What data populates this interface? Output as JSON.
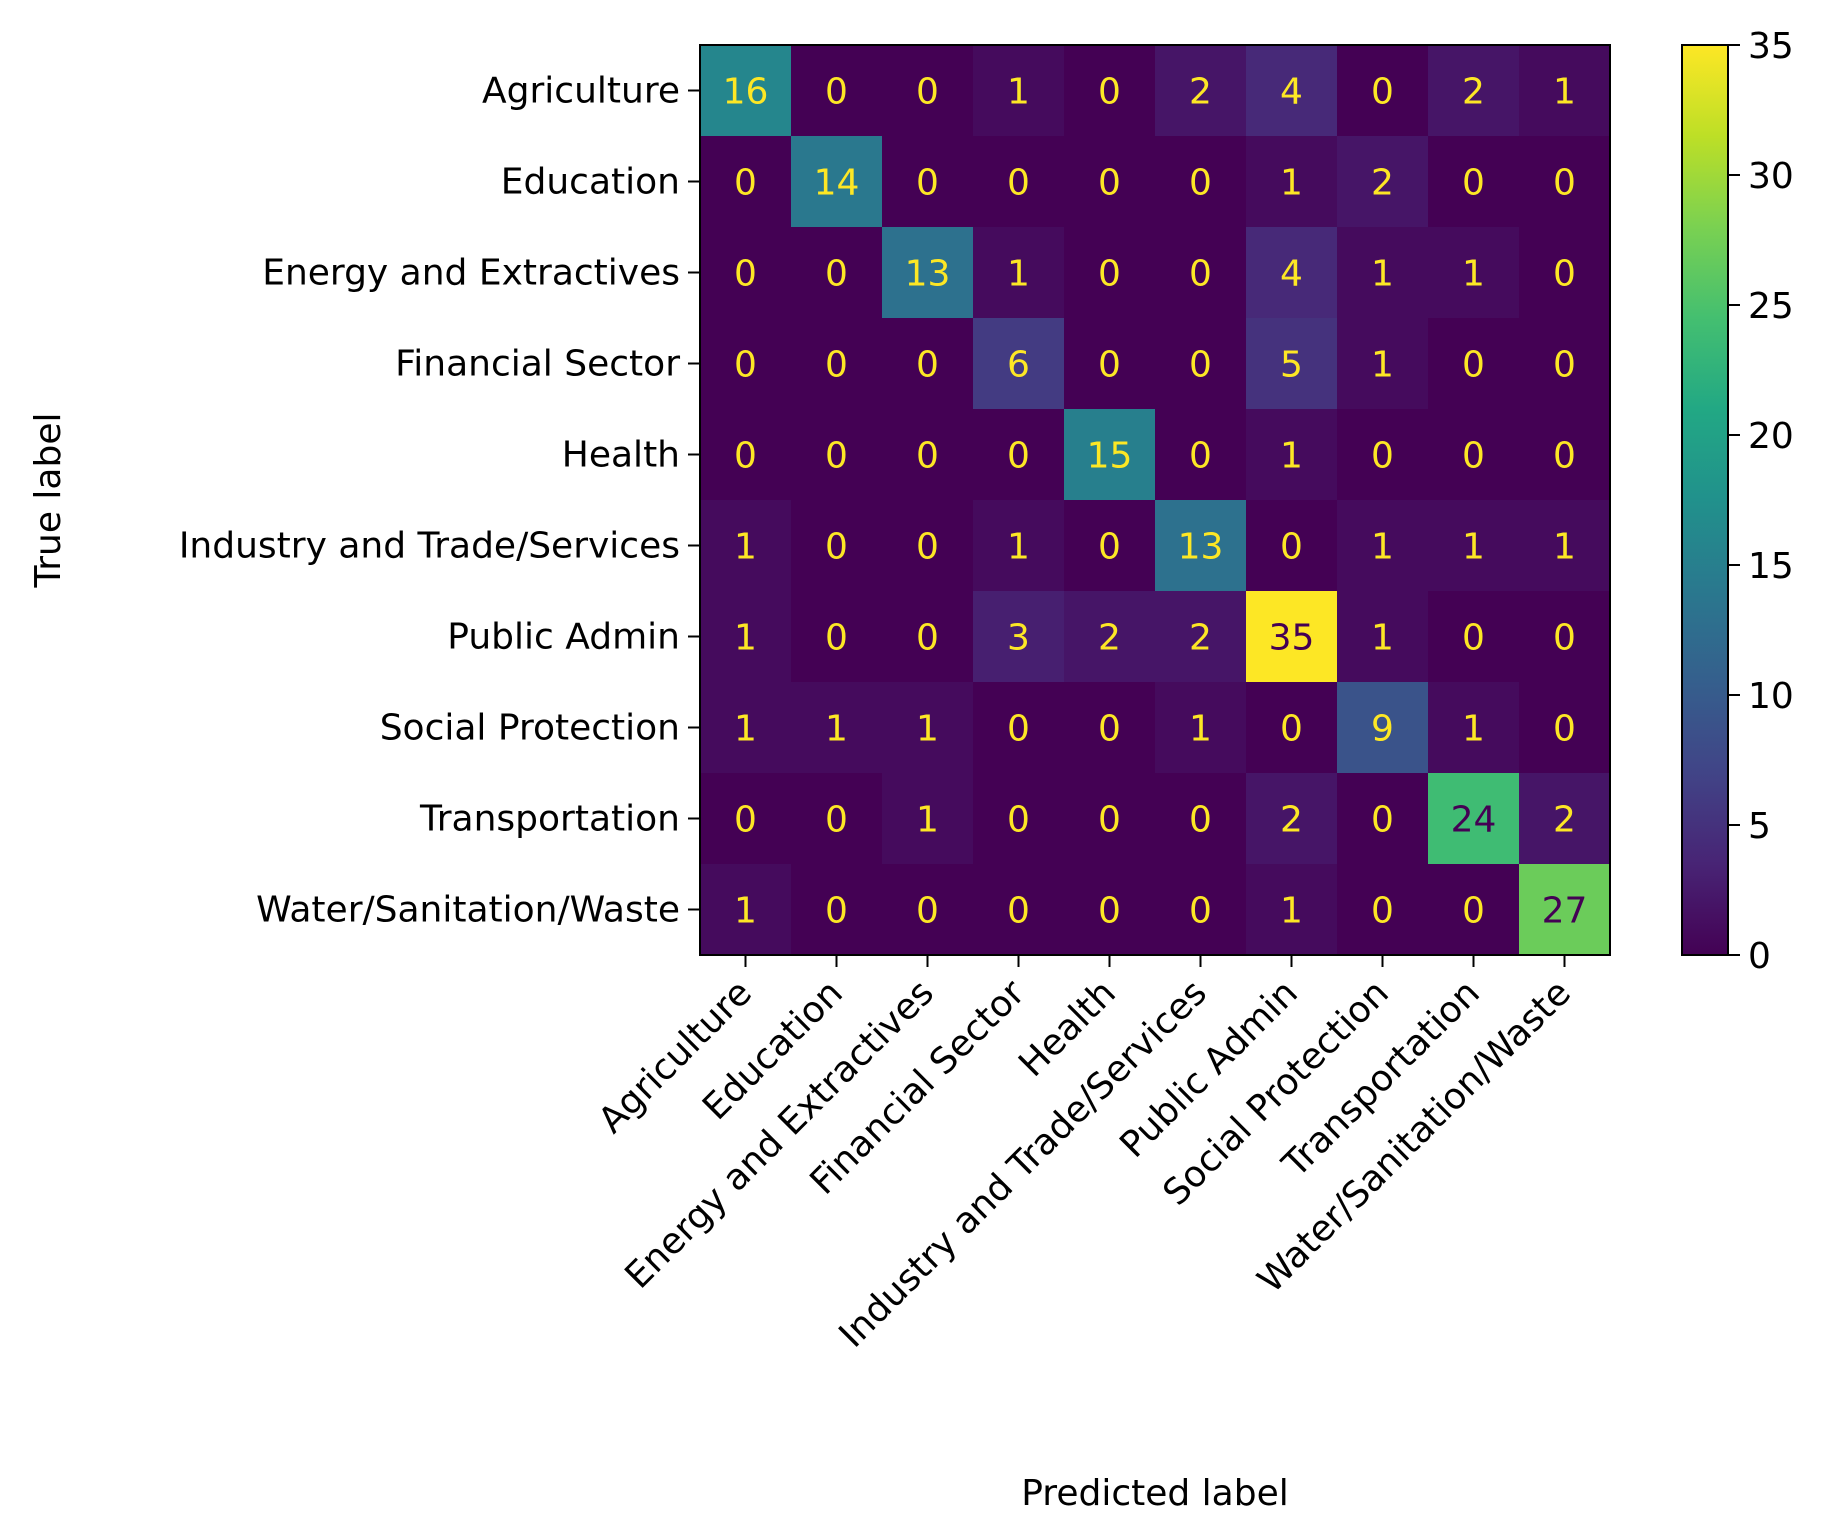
{
  "chart_data": {
    "type": "heatmap",
    "title": "",
    "xlabel": "Predicted label",
    "ylabel": "True label",
    "labels": [
      "Agriculture",
      "Education",
      "Energy and Extractives",
      "Financial Sector",
      "Health",
      "Industry and Trade/Services",
      "Public Admin",
      "Social Protection",
      "Transportation",
      "Water/Sanitation/Waste"
    ],
    "matrix": [
      [
        16,
        0,
        0,
        1,
        0,
        2,
        4,
        0,
        2,
        1
      ],
      [
        0,
        14,
        0,
        0,
        0,
        0,
        1,
        2,
        0,
        0
      ],
      [
        0,
        0,
        13,
        1,
        0,
        0,
        4,
        1,
        1,
        0
      ],
      [
        0,
        0,
        0,
        6,
        0,
        0,
        5,
        1,
        0,
        0
      ],
      [
        0,
        0,
        0,
        0,
        15,
        0,
        1,
        0,
        0,
        0
      ],
      [
        1,
        0,
        0,
        1,
        0,
        13,
        0,
        1,
        1,
        1
      ],
      [
        1,
        0,
        0,
        3,
        2,
        2,
        35,
        1,
        0,
        0
      ],
      [
        1,
        1,
        1,
        0,
        0,
        1,
        0,
        9,
        1,
        0
      ],
      [
        0,
        0,
        1,
        0,
        0,
        0,
        2,
        0,
        24,
        2
      ],
      [
        1,
        0,
        0,
        0,
        0,
        0,
        1,
        0,
        0,
        27
      ]
    ],
    "colormap": "viridis",
    "vmin": 0,
    "vmax": 35,
    "colorbar_ticks": [
      0,
      5,
      10,
      15,
      20,
      25,
      30,
      35
    ],
    "grid": false
  }
}
